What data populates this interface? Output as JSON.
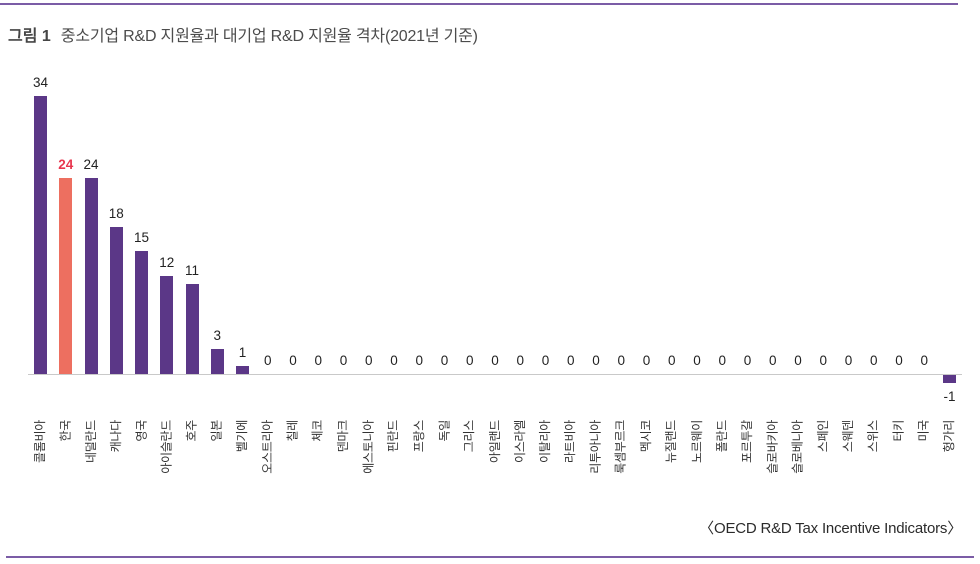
{
  "page": {
    "figure_label": "그림 1",
    "figure_title": "중소기업 R&D 지원율과 대기업 R&D 지원율 격차(2021년 기준)",
    "source": "〈OECD R&D Tax Incentive Indicators〉"
  },
  "colors": {
    "accent_rule": "#7b5ca6",
    "bar": "#5b3787",
    "bar_highlight": "#ed6f60",
    "value_label": "#222222",
    "value_label_highlight": "#e8374f",
    "axis_line": "#c9c9c9",
    "axis_label_text": "#333333",
    "title_text": "#4c4c4c"
  },
  "chart_data": {
    "type": "bar",
    "title": "중소기업 R&D 지원율과 대기업 R&D 지원율 격차(2021년 기준)",
    "categories": [
      "콜롬비아",
      "한국",
      "네덜란드",
      "캐나다",
      "영국",
      "아이슬란드",
      "호주",
      "일본",
      "벨기에",
      "오스트리아",
      "칠레",
      "체코",
      "덴마크",
      "에스토니아",
      "핀란드",
      "프랑스",
      "독일",
      "그리스",
      "아일랜드",
      "이스라엘",
      "이탈리아",
      "라트비아",
      "리투아니아",
      "룩셈부르크",
      "멕시코",
      "뉴질랜드",
      "노르웨이",
      "폴란드",
      "포르투갈",
      "슬로바키아",
      "슬로베니아",
      "스페인",
      "스웨덴",
      "스위스",
      "터키",
      "미국",
      "헝가리"
    ],
    "values": [
      34,
      24,
      24,
      18,
      15,
      12,
      11,
      3,
      1,
      0,
      0,
      0,
      0,
      0,
      0,
      0,
      0,
      0,
      0,
      0,
      0,
      0,
      0,
      0,
      0,
      0,
      0,
      0,
      0,
      0,
      0,
      0,
      0,
      0,
      0,
      0,
      -1
    ],
    "highlight_index": 1,
    "highlight_category": "한국",
    "ylim": [
      -1,
      34
    ],
    "grid": false,
    "legend": false,
    "data_labels": true,
    "source": "〈OECD R&D Tax Incentive Indicators〉"
  }
}
